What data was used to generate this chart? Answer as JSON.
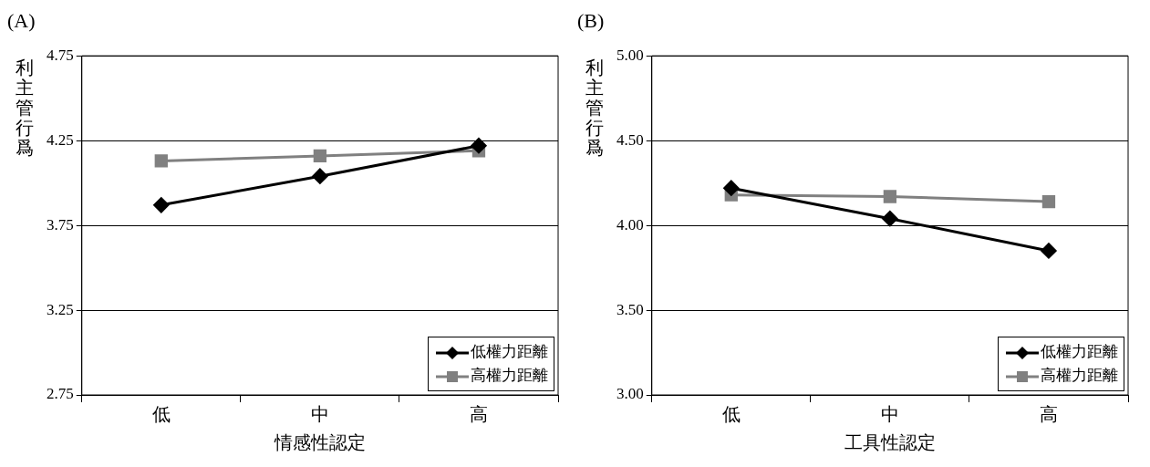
{
  "chart_data": [
    {
      "type": "line",
      "title": "(A)",
      "xlabel": "情感性認定",
      "ylabel": "利主管行爲",
      "categories": [
        "低",
        "中",
        "高"
      ],
      "ylim": [
        2.75,
        4.75
      ],
      "yticks": [
        2.75,
        3.25,
        3.75,
        4.25,
        4.75
      ],
      "grid": "y",
      "legend": "bottom right",
      "series": [
        {
          "name": "低權力距離",
          "color": "#000000",
          "marker": "diamond",
          "values": [
            3.87,
            4.04,
            4.22
          ]
        },
        {
          "name": "高權力距離",
          "color": "#808080",
          "marker": "square",
          "values": [
            4.13,
            4.16,
            4.19
          ]
        }
      ]
    },
    {
      "type": "line",
      "title": "(B)",
      "xlabel": "工具性認定",
      "ylabel": "利主管行爲",
      "categories": [
        "低",
        "中",
        "高"
      ],
      "ylim": [
        3.0,
        5.0
      ],
      "yticks": [
        {
          "value": 3.0,
          "label": "3.00"
        },
        {
          "value": 3.5,
          "label": "3.50"
        },
        {
          "value": 4.0,
          "label": "4.00"
        },
        {
          "value": 4.5,
          "label": "4.50"
        },
        {
          "value": 5.0,
          "label": "5.00"
        }
      ],
      "grid": "y",
      "legend": "bottom right",
      "series": [
        {
          "name": "低權力距離",
          "color": "#000000",
          "marker": "diamond",
          "values": [
            4.22,
            4.04,
            3.85
          ]
        },
        {
          "name": "高權力距離",
          "color": "#808080",
          "marker": "square",
          "values": [
            4.18,
            4.17,
            4.14
          ]
        }
      ]
    }
  ]
}
